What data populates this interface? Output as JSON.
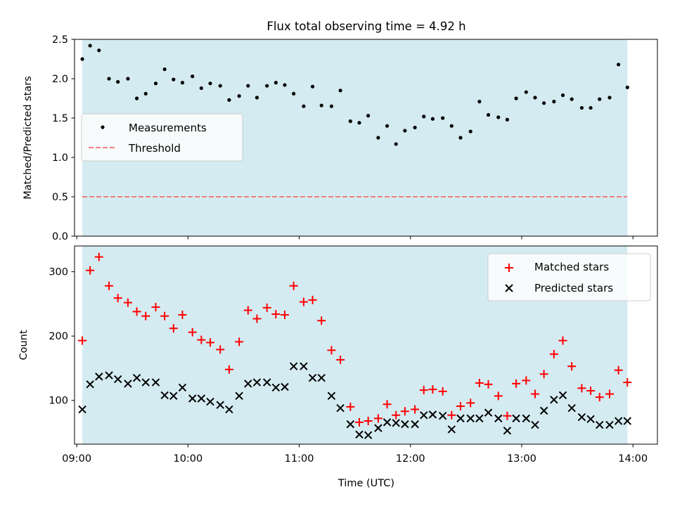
{
  "figure": {
    "title": "Flux total observing time = 4.92 h",
    "xlabel": "Time (UTC)"
  },
  "colors": {
    "band": "#d4ebf1",
    "threshold": "#f07f7f",
    "matched": "#ff0000",
    "predicted": "#000000",
    "measurement": "#000000"
  },
  "chart_data": [
    {
      "type": "scatter",
      "title": "Flux total observing time = 4.92 h",
      "xlabel": "",
      "ylabel": "Matched/Predicted stars",
      "xlim": [
        8.98,
        14.22
      ],
      "ylim": [
        0.0,
        2.5
      ],
      "yticks": [
        0.0,
        0.5,
        1.0,
        1.5,
        2.0,
        2.5
      ],
      "xticks": [
        "09:00",
        "10:00",
        "11:00",
        "12:00",
        "13:00",
        "14:00"
      ],
      "grid": false,
      "legend_position": "center-left",
      "band_x": [
        9.05,
        13.95
      ],
      "threshold": 0.5,
      "series": [
        {
          "name": "Measurements",
          "x": [
            9.05,
            9.12,
            9.2,
            9.29,
            9.37,
            9.46,
            9.54,
            9.62,
            9.71,
            9.79,
            9.87,
            9.95,
            10.04,
            10.12,
            10.2,
            10.29,
            10.37,
            10.46,
            10.54,
            10.62,
            10.71,
            10.79,
            10.87,
            10.95,
            11.04,
            11.12,
            11.2,
            11.29,
            11.37,
            11.46,
            11.54,
            11.62,
            11.71,
            11.79,
            11.87,
            11.95,
            12.04,
            12.12,
            12.2,
            12.29,
            12.37,
            12.45,
            12.54,
            12.62,
            12.7,
            12.79,
            12.87,
            12.95,
            13.04,
            13.12,
            13.2,
            13.29,
            13.37,
            13.45,
            13.54,
            13.62,
            13.7,
            13.79,
            13.87,
            13.95
          ],
          "values": [
            2.25,
            2.42,
            2.36,
            2.0,
            1.96,
            2.0,
            1.75,
            1.81,
            1.94,
            2.12,
            1.99,
            1.95,
            2.03,
            1.88,
            1.94,
            1.91,
            1.73,
            1.78,
            1.91,
            1.76,
            1.91,
            1.95,
            1.92,
            1.81,
            1.65,
            1.9,
            1.66,
            1.65,
            1.85,
            1.46,
            1.44,
            1.53,
            1.25,
            1.4,
            1.17,
            1.34,
            1.38,
            1.52,
            1.49,
            1.5,
            1.4,
            1.25,
            1.33,
            1.71,
            1.54,
            1.51,
            1.48,
            1.75,
            1.83,
            1.76,
            1.69,
            1.71,
            1.79,
            1.74,
            1.63,
            1.63,
            1.74,
            1.76,
            2.18,
            1.89
          ]
        },
        {
          "name": "Threshold",
          "values": [
            0.5,
            0.5
          ]
        }
      ]
    },
    {
      "type": "scatter",
      "title": "",
      "xlabel": "Time (UTC)",
      "ylabel": "Count",
      "xlim": [
        8.98,
        14.22
      ],
      "ylim": [
        32,
        340
      ],
      "yticks": [
        100,
        200,
        300
      ],
      "xticks": [
        "09:00",
        "10:00",
        "11:00",
        "12:00",
        "13:00",
        "14:00"
      ],
      "grid": false,
      "legend_position": "top-right",
      "band_x": [
        9.05,
        13.95
      ],
      "series": [
        {
          "name": "Matched stars",
          "x": [
            9.05,
            9.12,
            9.2,
            9.29,
            9.37,
            9.46,
            9.54,
            9.62,
            9.71,
            9.79,
            9.87,
            9.95,
            10.04,
            10.12,
            10.2,
            10.29,
            10.37,
            10.46,
            10.54,
            10.62,
            10.71,
            10.79,
            10.87,
            10.95,
            11.04,
            11.12,
            11.2,
            11.29,
            11.37,
            11.46,
            11.54,
            11.62,
            11.71,
            11.79,
            11.87,
            11.95,
            12.04,
            12.12,
            12.2,
            12.29,
            12.37,
            12.45,
            12.54,
            12.62,
            12.7,
            12.79,
            12.87,
            12.95,
            13.04,
            13.12,
            13.2,
            13.29,
            13.37,
            13.45,
            13.54,
            13.62,
            13.7,
            13.79,
            13.87,
            13.95
          ],
          "values": [
            193,
            302,
            323,
            278,
            259,
            252,
            238,
            231,
            245,
            231,
            212,
            233,
            206,
            194,
            190,
            179,
            148,
            191,
            240,
            227,
            244,
            234,
            233,
            278,
            253,
            256,
            224,
            178,
            163,
            90,
            66,
            68,
            72,
            94,
            77,
            83,
            86,
            116,
            117,
            114,
            77,
            91,
            96,
            127,
            125,
            107,
            76,
            126,
            131,
            110,
            141,
            172,
            193,
            153,
            119,
            115,
            105,
            110,
            147,
            128
          ]
        },
        {
          "name": "Predicted stars",
          "x": [
            9.05,
            9.12,
            9.2,
            9.29,
            9.37,
            9.46,
            9.54,
            9.62,
            9.71,
            9.79,
            9.87,
            9.95,
            10.04,
            10.12,
            10.2,
            10.29,
            10.37,
            10.46,
            10.54,
            10.62,
            10.71,
            10.79,
            10.87,
            10.95,
            11.04,
            11.12,
            11.2,
            11.29,
            11.37,
            11.46,
            11.54,
            11.62,
            11.71,
            11.79,
            11.87,
            11.95,
            12.04,
            12.12,
            12.2,
            12.29,
            12.37,
            12.45,
            12.54,
            12.62,
            12.7,
            12.79,
            12.87,
            12.95,
            13.04,
            13.12,
            13.2,
            13.29,
            13.37,
            13.45,
            13.54,
            13.62,
            13.7,
            13.79,
            13.87,
            13.95
          ],
          "values": [
            86,
            125,
            137,
            139,
            133,
            126,
            135,
            128,
            128,
            108,
            107,
            120,
            103,
            103,
            98,
            93,
            86,
            107,
            126,
            128,
            128,
            120,
            121,
            153,
            153,
            135,
            135,
            107,
            88,
            63,
            47,
            46,
            57,
            66,
            65,
            63,
            63,
            77,
            78,
            76,
            55,
            72,
            72,
            72,
            81,
            72,
            53,
            72,
            72,
            62,
            84,
            101,
            108,
            88,
            74,
            71,
            62,
            62,
            68,
            68
          ]
        }
      ]
    }
  ]
}
